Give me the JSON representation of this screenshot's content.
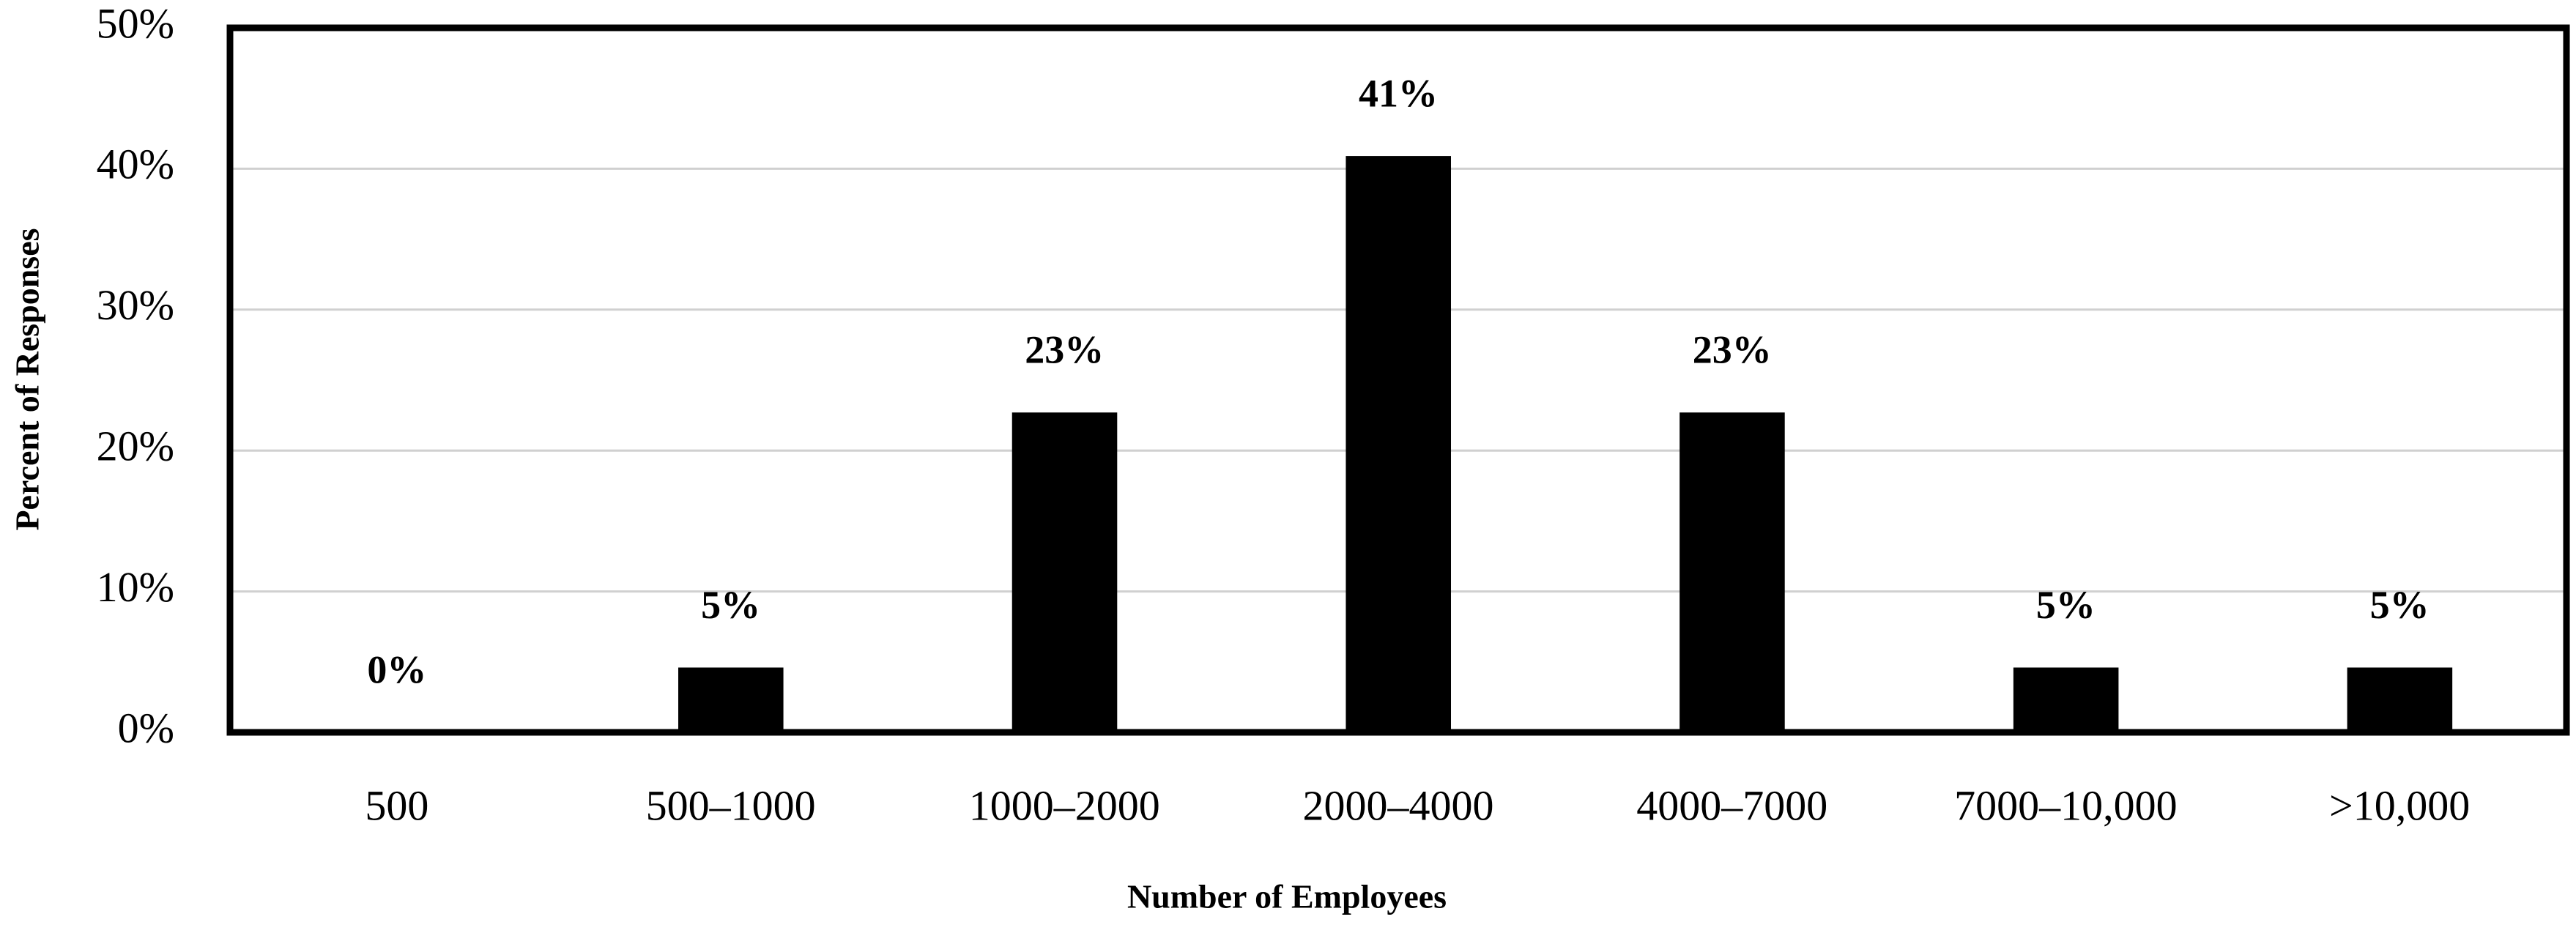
{
  "chart_data": {
    "type": "bar",
    "x_label": "Number of Employees",
    "y_label": "Percent of Responses",
    "categories": [
      "500",
      "500–1000",
      "1000–2000",
      "2000–4000",
      "4000–7000",
      "7000–10,000",
      ">10,000"
    ],
    "values": [
      0,
      4.6,
      22.7,
      40.9,
      22.7,
      4.6,
      4.6
    ],
    "value_labels": [
      "0%",
      "5%",
      "23%",
      "41%",
      "23%",
      "5%",
      "5%"
    ],
    "color": "#000000",
    "ylim": [
      0,
      50
    ],
    "yticks": [
      {
        "value": 0,
        "label": "0%"
      },
      {
        "value": 10,
        "label": "10%"
      },
      {
        "value": 20,
        "label": "20%"
      },
      {
        "value": 30,
        "label": "30%"
      },
      {
        "value": 40,
        "label": "40%"
      },
      {
        "value": 50,
        "label": "50%"
      }
    ],
    "grid": true
  }
}
